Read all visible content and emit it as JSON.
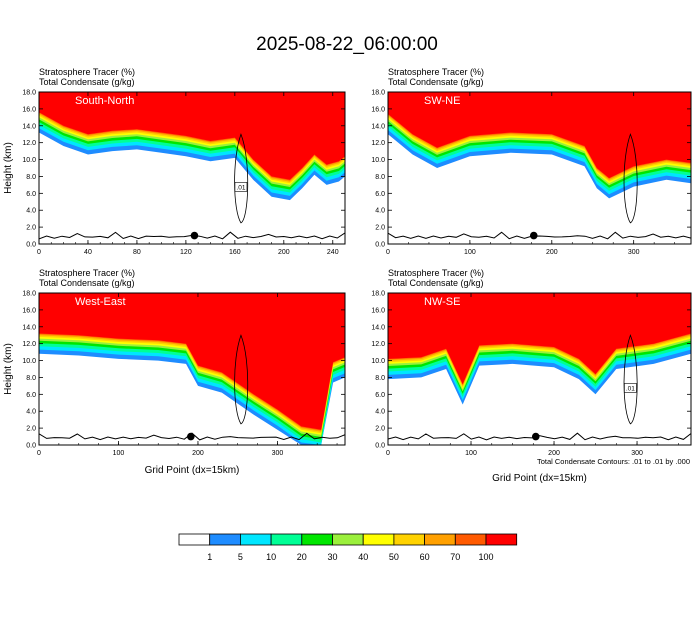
{
  "title": "2025-08-22_06:00:00",
  "colors": {
    "levels": [
      "#ffffff",
      "#1e8cff",
      "#00e6ff",
      "#00ff96",
      "#00e600",
      "#9bf03c",
      "#ffff00",
      "#ffd200",
      "#ffa000",
      "#ff5a00",
      "#ff0000"
    ],
    "contour": "#000000",
    "terrain": "#000000"
  },
  "colorbar": {
    "labels": [
      "1",
      "5",
      "10",
      "20",
      "30",
      "40",
      "50",
      "60",
      "70",
      "100"
    ]
  },
  "footnote": "Total Condensate Contours: .01 to .01 by .000",
  "xlabel": "Grid Point (dx=15km)",
  "chart_data": [
    {
      "type": "heatmap",
      "panel_label": "South-North",
      "subtitle_1": "Stratosphere Tracer   (%)",
      "subtitle_2": "Total Condensate   (g/kg)",
      "ylabel": "Height (km)",
      "xlabel": "",
      "xlim": [
        0,
        250
      ],
      "ylim": [
        0,
        18
      ],
      "xticks": [
        "0",
        "40",
        "80",
        "120",
        "160",
        "200",
        "240"
      ],
      "yticks": [
        "0.0",
        "2.0",
        "4.0",
        "6.0",
        "8.0",
        "10.0",
        "12.0",
        "14.0",
        "16.0",
        "18.0"
      ],
      "contour_label": ".01",
      "marker_x": 127,
      "tropopause_top": 18.0,
      "tropopause_base": [
        [
          0,
          15.6
        ],
        [
          20,
          14.0
        ],
        [
          40,
          13.0
        ],
        [
          60,
          13.4
        ],
        [
          80,
          13.6
        ],
        [
          100,
          13.2
        ],
        [
          120,
          12.8
        ],
        [
          140,
          12.2
        ],
        [
          160,
          12.6
        ],
        [
          175,
          10.0
        ],
        [
          190,
          8.0
        ],
        [
          205,
          7.6
        ],
        [
          215,
          9.0
        ],
        [
          225,
          10.6
        ],
        [
          235,
          9.4
        ],
        [
          245,
          9.8
        ],
        [
          250,
          10.4
        ]
      ]
    },
    {
      "type": "heatmap",
      "panel_label": "SW-NE",
      "subtitle_1": "Stratosphere Tracer   (%)",
      "subtitle_2": "Total Condensate   (g/kg)",
      "ylabel": "",
      "xlabel": "",
      "xlim": [
        0,
        370
      ],
      "ylim": [
        0,
        18
      ],
      "xticks": [
        "0",
        "100",
        "200",
        "300"
      ],
      "yticks": [
        "0.0",
        "2.0",
        "4.0",
        "6.0",
        "8.0",
        "10.0",
        "12.0",
        "14.0",
        "16.0",
        "18.0"
      ],
      "contour_label": "",
      "marker_x": 178,
      "tropopause_top": 18.0,
      "tropopause_base": [
        [
          0,
          15.4
        ],
        [
          30,
          13.0
        ],
        [
          60,
          11.4
        ],
        [
          100,
          12.8
        ],
        [
          150,
          13.2
        ],
        [
          200,
          13.0
        ],
        [
          240,
          11.6
        ],
        [
          255,
          9.0
        ],
        [
          270,
          7.8
        ],
        [
          300,
          9.2
        ],
        [
          340,
          10.0
        ],
        [
          370,
          9.6
        ]
      ]
    },
    {
      "type": "heatmap",
      "panel_label": "West-East",
      "subtitle_1": "Stratosphere Tracer   (%)",
      "subtitle_2": "Total Condensate   (g/kg)",
      "ylabel": "Height (km)",
      "xlabel": "Grid Point (dx=15km)",
      "xlim": [
        0,
        385
      ],
      "ylim": [
        0,
        18
      ],
      "xticks": [
        "0",
        "100",
        "200",
        "300"
      ],
      "yticks": [
        "0.0",
        "2.0",
        "4.0",
        "6.0",
        "8.0",
        "10.0",
        "12.0",
        "14.0",
        "16.0",
        "18.0"
      ],
      "contour_label": "",
      "marker_x": 191,
      "tropopause_top": 18.0,
      "tropopause_base": [
        [
          0,
          13.2
        ],
        [
          50,
          13.0
        ],
        [
          100,
          12.6
        ],
        [
          150,
          12.4
        ],
        [
          185,
          12.0
        ],
        [
          200,
          9.4
        ],
        [
          230,
          8.6
        ],
        [
          270,
          6.0
        ],
        [
          300,
          4.2
        ],
        [
          330,
          2.2
        ],
        [
          355,
          1.8
        ],
        [
          370,
          9.8
        ],
        [
          385,
          10.4
        ]
      ]
    },
    {
      "type": "heatmap",
      "panel_label": "NW-SE",
      "subtitle_1": "Stratosphere Tracer   (%)",
      "subtitle_2": "Total Condensate   (g/kg)",
      "ylabel": "",
      "xlabel": "Grid Point (dx=15km)",
      "xlim": [
        0,
        365
      ],
      "ylim": [
        0,
        18
      ],
      "xticks": [
        "0",
        "100",
        "200",
        "300"
      ],
      "yticks": [
        "0.0",
        "2.0",
        "4.0",
        "6.0",
        "8.0",
        "10.0",
        "12.0",
        "14.0",
        "16.0",
        "18.0"
      ],
      "contour_label": ".01",
      "marker_x": 178,
      "tropopause_top": 18.0,
      "tropopause_base": [
        [
          0,
          10.2
        ],
        [
          40,
          10.4
        ],
        [
          70,
          11.4
        ],
        [
          90,
          7.2
        ],
        [
          110,
          11.8
        ],
        [
          150,
          12.0
        ],
        [
          200,
          11.6
        ],
        [
          230,
          10.2
        ],
        [
          250,
          8.4
        ],
        [
          275,
          11.4
        ],
        [
          320,
          12.0
        ],
        [
          365,
          13.2
        ]
      ]
    }
  ]
}
